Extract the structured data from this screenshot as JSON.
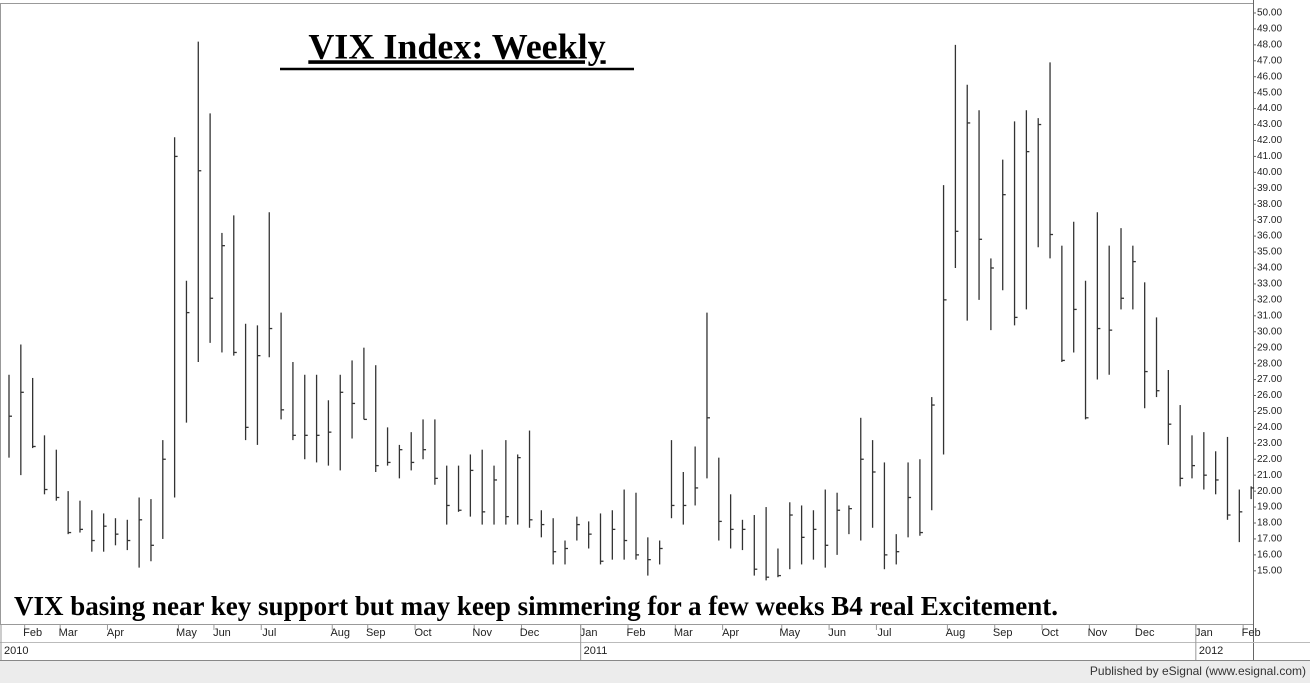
{
  "chart_data": {
    "type": "hlc",
    "title": "VIX Index: Weekly",
    "annotation": "VIX basing near key support but may keep simmering for a few weeks B4 real Excitement.",
    "footer": "Published by eSignal (www.esignal.com)",
    "color": "#333333",
    "categories": [
      null,
      null,
      "Feb",
      null,
      null,
      "Mar",
      null,
      null,
      null,
      "Apr",
      null,
      null,
      null,
      null,
      null,
      "May",
      null,
      null,
      "Jun",
      null,
      null,
      null,
      "Jul",
      null,
      null,
      null,
      null,
      null,
      "Aug",
      null,
      null,
      "Sep",
      null,
      null,
      null,
      "Oct",
      null,
      null,
      null,
      null,
      "Nov",
      null,
      null,
      null,
      "Dec",
      null,
      null,
      null,
      null,
      "Jan",
      null,
      null,
      null,
      "Feb",
      null,
      null,
      null,
      "Mar",
      null,
      null,
      null,
      "Apr",
      null,
      null,
      null,
      null,
      "May",
      null,
      null,
      null,
      "Jun",
      null,
      null,
      null,
      "Jul",
      null,
      null,
      null,
      null,
      null,
      "Aug",
      null,
      null,
      null,
      "Sep",
      null,
      null,
      null,
      "Oct",
      null,
      null,
      null,
      "Nov",
      null,
      null,
      null,
      "Dec",
      null,
      null,
      null,
      null,
      "Jan",
      null,
      null,
      null,
      "Feb"
    ],
    "years": [
      "2010",
      "2011",
      "2012"
    ],
    "year_starts": [
      0,
      49,
      101
    ],
    "high": [
      27.3,
      29.2,
      27.1,
      23.5,
      22.6,
      20.0,
      19.4,
      18.8,
      18.6,
      18.3,
      18.2,
      19.6,
      19.5,
      23.2,
      42.2,
      33.2,
      48.2,
      43.7,
      36.2,
      37.3,
      30.5,
      30.4,
      37.5,
      31.2,
      28.1,
      27.3,
      27.3,
      25.7,
      27.3,
      28.2,
      29.0,
      27.9,
      24.0,
      22.9,
      23.7,
      24.5,
      24.5,
      21.6,
      21.6,
      22.3,
      22.6,
      21.6,
      23.2,
      22.3,
      23.8,
      18.8,
      18.3,
      16.9,
      18.4,
      18.1,
      18.6,
      18.8,
      20.1,
      19.9,
      17.1,
      16.9,
      23.2,
      21.2,
      22.8,
      31.2,
      22.1,
      19.8,
      18.2,
      18.5,
      19.0,
      16.4,
      19.3,
      19.1,
      18.8,
      20.1,
      19.9,
      19.1,
      24.6,
      23.2,
      21.8,
      17.3,
      21.8,
      22.0,
      25.9,
      39.2,
      48.0,
      45.5,
      43.9,
      34.6,
      40.8,
      43.2,
      43.9,
      43.4,
      46.9,
      35.4,
      36.9,
      33.2,
      37.5,
      35.4,
      36.5,
      35.4,
      33.1,
      30.9,
      27.6,
      25.4,
      23.5,
      23.7,
      22.5,
      23.4,
      20.1,
      20.3
    ],
    "low": [
      22.1,
      21.0,
      22.7,
      19.8,
      19.4,
      17.3,
      17.4,
      16.2,
      16.2,
      16.6,
      16.3,
      15.2,
      15.6,
      17.0,
      19.6,
      24.3,
      28.1,
      29.3,
      28.7,
      28.5,
      23.2,
      22.9,
      28.4,
      24.5,
      23.2,
      22.0,
      21.8,
      21.6,
      21.3,
      23.3,
      24.5,
      21.2,
      21.6,
      20.8,
      21.3,
      22.0,
      20.4,
      17.9,
      18.7,
      18.4,
      17.9,
      17.9,
      17.9,
      17.9,
      17.7,
      17.1,
      15.4,
      15.4,
      16.9,
      16.4,
      15.4,
      15.7,
      15.7,
      15.7,
      14.7,
      15.4,
      18.3,
      17.9,
      19.1,
      20.8,
      16.9,
      16.4,
      16.3,
      14.7,
      14.4,
      14.6,
      15.1,
      15.4,
      15.7,
      15.2,
      16.0,
      17.3,
      16.9,
      17.7,
      15.1,
      15.4,
      17.1,
      17.2,
      18.8,
      22.3,
      34.0,
      30.7,
      32.0,
      30.1,
      32.6,
      30.4,
      31.4,
      35.3,
      34.6,
      28.1,
      28.7,
      24.5,
      27.0,
      27.3,
      31.4,
      31.4,
      25.2,
      25.9,
      22.9,
      20.3,
      20.8,
      20.1,
      19.8,
      18.2,
      16.8,
      19.5
    ],
    "close": [
      24.7,
      26.2,
      22.8,
      20.1,
      19.6,
      17.4,
      17.6,
      16.9,
      17.8,
      17.3,
      16.9,
      18.2,
      16.6,
      22.0,
      41.0,
      31.2,
      40.1,
      32.1,
      35.4,
      28.7,
      24.0,
      28.5,
      30.2,
      25.1,
      23.5,
      23.5,
      23.5,
      23.7,
      26.2,
      25.5,
      24.5,
      21.6,
      21.8,
      22.6,
      21.8,
      22.6,
      20.8,
      19.1,
      18.8,
      21.3,
      18.7,
      20.7,
      18.4,
      22.1,
      18.2,
      17.9,
      16.2,
      16.4,
      17.9,
      17.3,
      15.6,
      17.6,
      16.9,
      16.0,
      15.7,
      16.4,
      19.1,
      19.1,
      20.2,
      24.6,
      18.1,
      17.6,
      17.6,
      15.1,
      14.6,
      14.7,
      18.5,
      17.1,
      17.6,
      16.6,
      18.8,
      18.9,
      22.0,
      21.2,
      16.0,
      16.2,
      19.6,
      17.4,
      25.4,
      32.0,
      36.3,
      43.1,
      35.8,
      34.0,
      38.6,
      30.9,
      41.3,
      43.0,
      36.1,
      28.2,
      31.4,
      24.6,
      30.2,
      30.1,
      32.1,
      34.4,
      27.5,
      26.3,
      24.2,
      20.8,
      21.6,
      21.0,
      20.7,
      18.5,
      18.7,
      20.2
    ],
    "ylim": [
      11.6,
      50.5
    ],
    "yticks": [
      {
        "value": 50,
        "label": "50.00"
      },
      {
        "value": 49,
        "label": "49.00"
      },
      {
        "value": 48,
        "label": "48.00"
      },
      {
        "value": 47,
        "label": "47.00"
      },
      {
        "value": 46,
        "label": "46.00"
      },
      {
        "value": 45,
        "label": "45.00"
      },
      {
        "value": 44,
        "label": "44.00"
      },
      {
        "value": 43,
        "label": "43.00"
      },
      {
        "value": 42,
        "label": "42.00"
      },
      {
        "value": 41,
        "label": "41.00"
      },
      {
        "value": 40,
        "label": "40.00"
      },
      {
        "value": 39,
        "label": "39.00"
      },
      {
        "value": 38,
        "label": "38.00"
      },
      {
        "value": 37,
        "label": "37.00"
      },
      {
        "value": 36,
        "label": "36.00"
      },
      {
        "value": 35,
        "label": "35.00"
      },
      {
        "value": 34,
        "label": "34.00"
      },
      {
        "value": 33,
        "label": "33.00"
      },
      {
        "value": 32,
        "label": "32.00"
      },
      {
        "value": 31,
        "label": "31.00"
      },
      {
        "value": 30,
        "label": "30.00"
      },
      {
        "value": 29,
        "label": "29.00"
      },
      {
        "value": 28,
        "label": "28.00"
      },
      {
        "value": 27,
        "label": "27.00"
      },
      {
        "value": 26,
        "label": "26.00"
      },
      {
        "value": 25,
        "label": "25.00"
      },
      {
        "value": 24,
        "label": "24.00"
      },
      {
        "value": 23,
        "label": "23.00"
      },
      {
        "value": 22,
        "label": "22.00"
      },
      {
        "value": 21,
        "label": "21.00"
      },
      {
        "value": 20,
        "label": "20.00"
      },
      {
        "value": 19,
        "label": "19.00"
      },
      {
        "value": 18,
        "label": "18.00"
      },
      {
        "value": 17,
        "label": "17.00"
      },
      {
        "value": 16,
        "label": "16.00"
      },
      {
        "value": 15,
        "label": "15.00"
      }
    ],
    "yaxis_side": "right"
  }
}
